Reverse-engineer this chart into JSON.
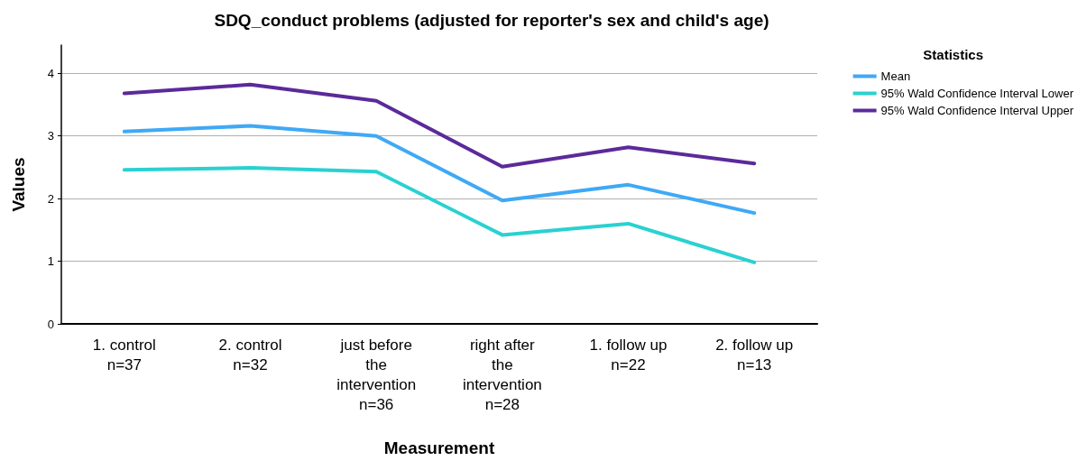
{
  "chart_data": {
    "type": "line",
    "title": "SDQ_conduct problems (adjusted for reporter's sex and child's age)",
    "xlabel": "Measurement",
    "ylabel": "Values",
    "legend_title": "Statistics",
    "categories": [
      "1. control\nn=37",
      "2. control\nn=32",
      "just before\nthe\nintervention\nn=36",
      "right after\nthe\nintervention\nn=28",
      "1. follow up\nn=22",
      "2. follow up\nn=13"
    ],
    "series": [
      {
        "name": "Mean",
        "color": "#3fa9f5",
        "values": [
          3.07,
          3.16,
          3.0,
          1.97,
          2.22,
          1.77
        ]
      },
      {
        "name": "95% Wald Confidence Interval Lower",
        "color": "#2ad1d1",
        "values": [
          2.46,
          2.49,
          2.43,
          1.42,
          1.6,
          0.98
        ]
      },
      {
        "name": "95% Wald Confidence Interval Upper",
        "color": "#5b2a9a",
        "values": [
          3.68,
          3.82,
          3.56,
          2.51,
          2.82,
          2.56
        ]
      }
    ],
    "ylim": [
      0,
      4.45
    ],
    "yticks": [
      0,
      1,
      2,
      3,
      4
    ],
    "grid": "y",
    "legend": "top right",
    "marker": "none",
    "line_style": "solid"
  }
}
